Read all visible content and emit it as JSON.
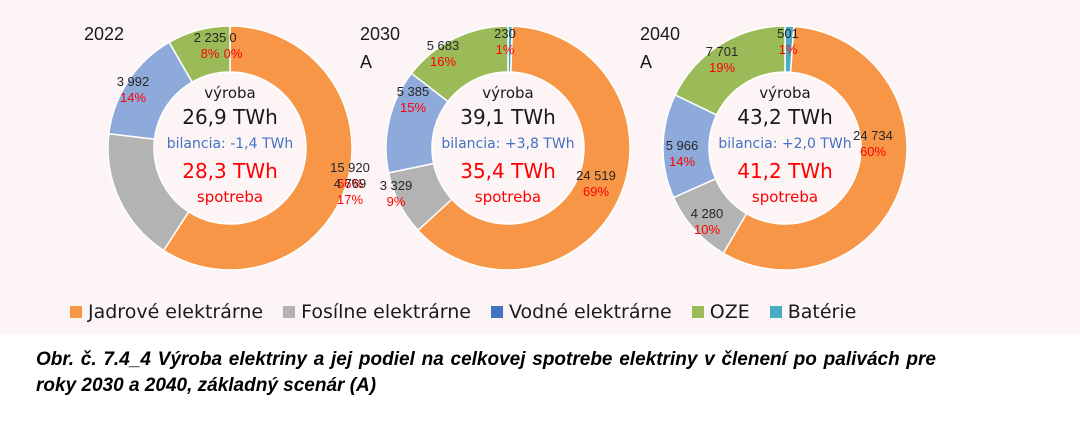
{
  "colors": {
    "nuclear": "#f79646",
    "fossil": "#b3b3b3",
    "hydro": "#8eaadb",
    "renewable": "#9bbb59",
    "battery": "#4bacc6",
    "label_dark": "#262626",
    "label_pct": "#ff0000",
    "bilancia": "#4472c4",
    "spotreba": "#ff0000"
  },
  "chart_data": [
    {
      "type": "pie",
      "donut": true,
      "title_line1": "2022",
      "title_line2": "",
      "categories": [
        "Jadrové elektrárne",
        "Fosílne elektrárne",
        "Vodné elektrárne",
        "OZE",
        "Batérie"
      ],
      "values": [
        15920,
        4769,
        3992,
        2235,
        0
      ],
      "value_labels": [
        "15 920",
        "4 769",
        "3 992",
        "2 235",
        "0"
      ],
      "percent_labels": [
        "56%",
        "17%",
        "14%",
        "8%",
        "0%"
      ],
      "center": {
        "label_top": "výroba",
        "production": "26,9 TWh",
        "balance": "bilancia: -1,4 TWh",
        "consumption": "28,3 TWh",
        "label_bottom": "spotreba"
      }
    },
    {
      "type": "pie",
      "donut": true,
      "title_line1": "2030",
      "title_line2": "A",
      "categories": [
        "Jadrové elektrárne",
        "Fosílne elektrárne",
        "Vodné elektrárne",
        "OZE",
        "Batérie"
      ],
      "values": [
        24519,
        3329,
        5385,
        5683,
        230
      ],
      "value_labels": [
        "24 519",
        "3 329",
        "5 385",
        "5 683",
        "230"
      ],
      "percent_labels": [
        "69%",
        "9%",
        "15%",
        "16%",
        "1%"
      ],
      "center": {
        "label_top": "výroba",
        "production": "39,1 TWh",
        "balance": "bilancia: +3,8 TWh",
        "consumption": "35,4 TWh",
        "label_bottom": "spotreba"
      }
    },
    {
      "type": "pie",
      "donut": true,
      "title_line1": "2040",
      "title_line2": "A",
      "categories": [
        "Jadrové elektrárne",
        "Fosílne elektrárne",
        "Vodné elektrárne",
        "OZE",
        "Batérie"
      ],
      "values": [
        24734,
        4280,
        5966,
        7701,
        501
      ],
      "value_labels": [
        "24 734",
        "4 280",
        "5 966",
        "7 701",
        "501"
      ],
      "percent_labels": [
        "60%",
        "10%",
        "14%",
        "19%",
        "1%"
      ],
      "center": {
        "label_top": "výroba",
        "production": "43,2 TWh",
        "balance": "bilancia: +2,0 TWh",
        "consumption": "41,2 TWh",
        "label_bottom": "spotreba"
      }
    }
  ],
  "legend": [
    {
      "label": "Jadrové elektrárne",
      "color": "#f79646"
    },
    {
      "label": "Fosílne elektrárne",
      "color": "#b3b3b3"
    },
    {
      "label": "Vodné elektrárne",
      "color": "#4472c4"
    },
    {
      "label": "OZE",
      "color": "#9bbb59"
    },
    {
      "label": "Batérie",
      "color": "#4bacc6"
    }
  ],
  "caption": "Obr. č. 7.4_4 Výroba elektriny a jej podiel na celkovej spotrebe elektriny v členení po palivách pre roky 2030 a 2040, základný scenár (A)"
}
